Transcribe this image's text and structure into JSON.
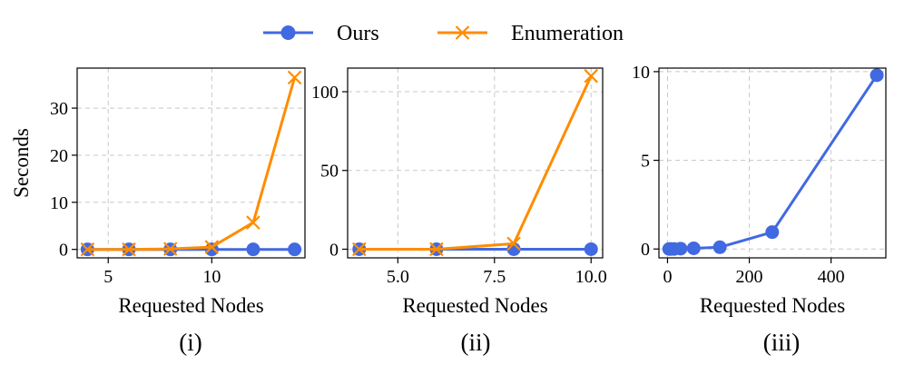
{
  "legend": {
    "items": [
      {
        "label": "Ours",
        "color": "#4169E1",
        "marker": "circle"
      },
      {
        "label": "Enumeration",
        "color": "#FF8C00",
        "marker": "x"
      }
    ],
    "placement": "top-center"
  },
  "chart_data": [
    {
      "type": "line",
      "caption": "(i)",
      "xlabel": "Requested Nodes",
      "ylabel": "Seconds",
      "xlim": [
        3.5,
        14.5
      ],
      "ylim": [
        -1.8,
        38.5
      ],
      "xticks": [
        5,
        10
      ],
      "xtick_labels": [
        "5",
        "10"
      ],
      "yticks": [
        0,
        10,
        20,
        30
      ],
      "ytick_labels": [
        "0",
        "10",
        "20",
        "30"
      ],
      "grid": true,
      "series": [
        {
          "name": "Ours",
          "x": [
            4,
            6,
            8,
            10,
            12,
            14
          ],
          "y": [
            0,
            0,
            0,
            0,
            0,
            0
          ]
        },
        {
          "name": "Enumeration",
          "x": [
            4,
            6,
            8,
            10,
            12,
            14
          ],
          "y": [
            0,
            0,
            0.1,
            0.5,
            5.7,
            36.5
          ]
        }
      ]
    },
    {
      "type": "line",
      "caption": "(ii)",
      "xlabel": "Requested Nodes",
      "ylabel": "",
      "xlim": [
        3.7,
        10.3
      ],
      "ylim": [
        -5.5,
        115
      ],
      "xticks": [
        5.0,
        7.5,
        10.0
      ],
      "xtick_labels": [
        "5.0",
        "7.5",
        "10.0"
      ],
      "yticks": [
        0,
        50,
        100
      ],
      "ytick_labels": [
        "0",
        "50",
        "100"
      ],
      "grid": true,
      "series": [
        {
          "name": "Ours",
          "x": [
            4,
            6,
            8,
            10
          ],
          "y": [
            0,
            0,
            0,
            0
          ]
        },
        {
          "name": "Enumeration",
          "x": [
            4,
            6,
            8,
            10
          ],
          "y": [
            0,
            0,
            3.5,
            110
          ]
        }
      ]
    },
    {
      "type": "line",
      "caption": "(iii)",
      "xlabel": "Requested Nodes",
      "ylabel": "",
      "xlim": [
        -21,
        534
      ],
      "ylim": [
        -0.5,
        10.2
      ],
      "xticks": [
        0,
        200,
        400
      ],
      "xtick_labels": [
        "0",
        "200",
        "400"
      ],
      "yticks": [
        0,
        5,
        10
      ],
      "ytick_labels": [
        "0",
        "5",
        "10"
      ],
      "grid": true,
      "series": [
        {
          "name": "Ours",
          "x": [
            4,
            8,
            16,
            32,
            64,
            128,
            256,
            512
          ],
          "y": [
            0,
            0,
            0,
            0.02,
            0.04,
            0.1,
            0.95,
            9.8
          ]
        }
      ]
    }
  ]
}
